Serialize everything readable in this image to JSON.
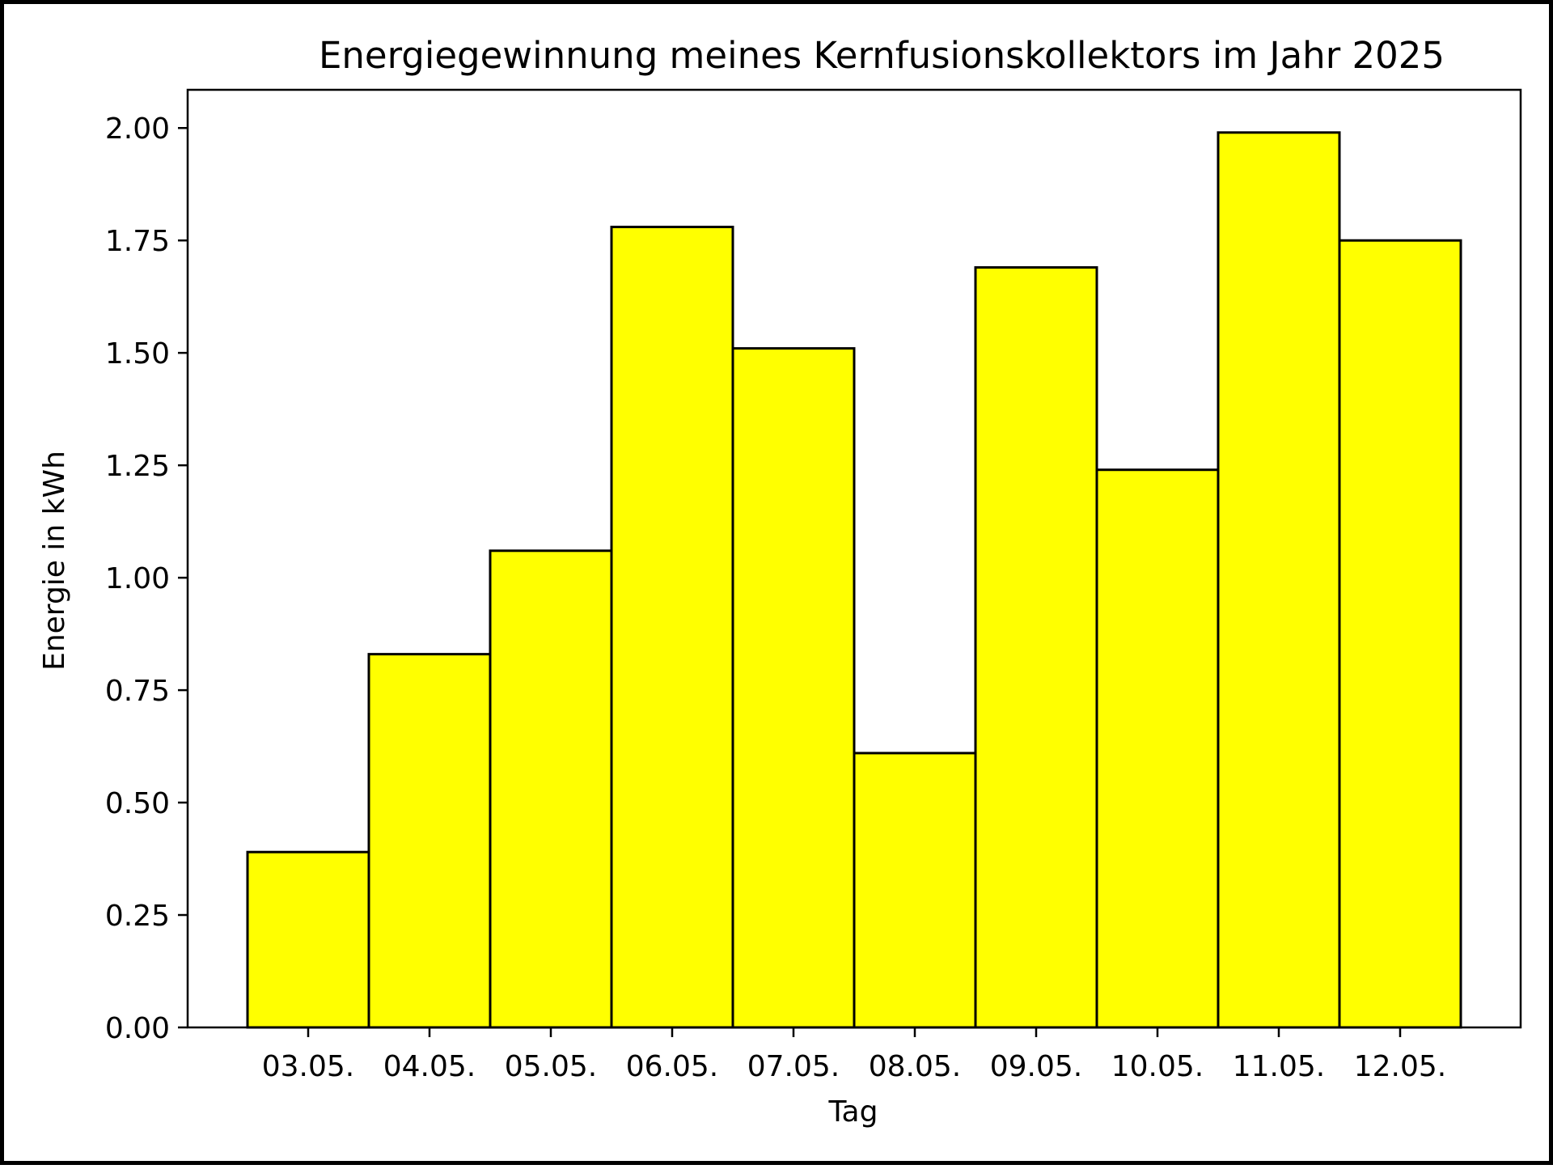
{
  "chart_data": {
    "type": "bar",
    "title": "Energiegewinnung meines Kernfusionskollektors im Jahr 2025",
    "xlabel": "Tag",
    "ylabel": "Energie in kWh",
    "categories": [
      "03.05.",
      "04.05.",
      "05.05.",
      "06.05.",
      "07.05.",
      "08.05.",
      "09.05.",
      "10.05.",
      "11.05.",
      "12.05."
    ],
    "values": [
      0.39,
      0.83,
      1.06,
      1.78,
      1.51,
      0.61,
      1.69,
      1.24,
      1.99,
      1.75
    ],
    "ylim": [
      0,
      2.085
    ],
    "yticks": [
      0.0,
      0.25,
      0.5,
      0.75,
      1.0,
      1.25,
      1.5,
      1.75,
      2.0
    ],
    "ytick_labels": [
      "0.00",
      "0.25",
      "0.50",
      "0.75",
      "1.00",
      "1.25",
      "1.50",
      "1.75",
      "2.00"
    ],
    "grid": false,
    "legend": "none",
    "colors": {
      "bar_fill": "#ffff00",
      "bar_edge": "#000000",
      "axis": "#000000"
    }
  }
}
